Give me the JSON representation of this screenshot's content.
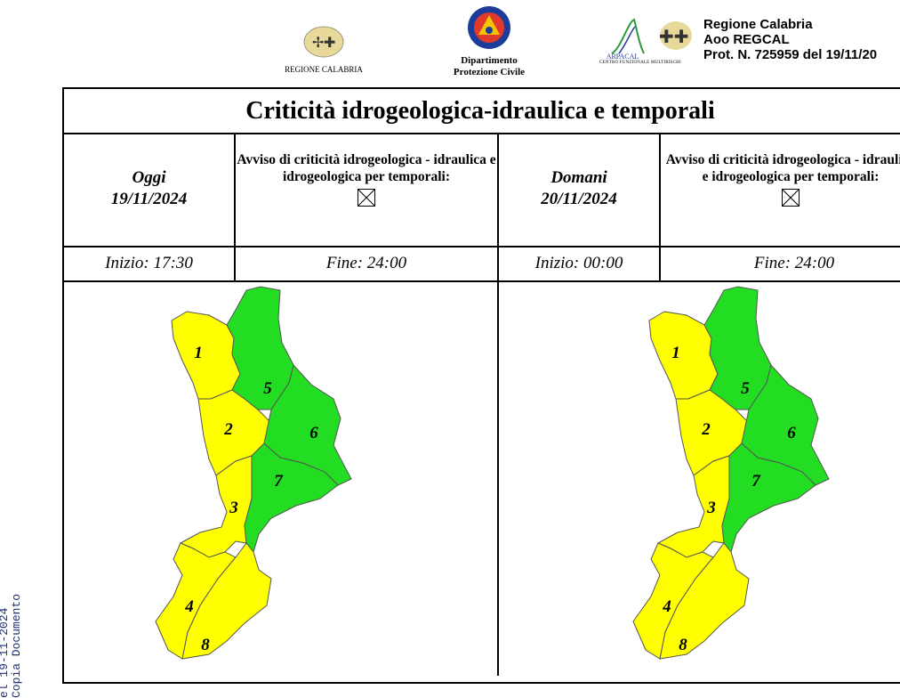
{
  "side_stamp": {
    "line1": "el 19-11-2024",
    "line2": "Copia Documento"
  },
  "header": {
    "logo_regione_caption": "REGIONE CALABRIA",
    "logo_dpc_caption_1": "Dipartimento",
    "logo_dpc_caption_2": "Protezione Civile",
    "logo_arpacal_caption_1": "ARPACAL",
    "logo_arpacal_caption_2": "CENTRO FUNZIONALE MULTIRISCHI",
    "protocol_line_1": "Regione Calabria",
    "protocol_line_2": "Aoo REGCAL",
    "protocol_line_3": "Prot. N. 725959 del 19/11/20"
  },
  "bulletin": {
    "title": "Criticità idrogeologica-idraulica e temporali",
    "days": [
      {
        "label": "Oggi",
        "date": "19/11/2024",
        "avviso_text": "Avviso di criticità idrogeologica - idraulica e idrogeologica per temporali:",
        "avviso_checked": true,
        "inizio": "Inizio: 17:30",
        "fine": "Fine: 24:00"
      },
      {
        "label": "Domani",
        "date": "20/11/2024",
        "avviso_text": "Avviso di criticità idrogeologica - idraulica e idrogeologica per temporali:",
        "avviso_checked": true,
        "inizio": "Inizio: 00:00",
        "fine": "Fine: 24:00"
      }
    ]
  },
  "map_zones": {
    "colors": {
      "yellow": "#ffff00",
      "green": "#22dd22",
      "border": "#555555"
    },
    "today": [
      {
        "zone": "1",
        "level": "yellow"
      },
      {
        "zone": "2",
        "level": "yellow"
      },
      {
        "zone": "3",
        "level": "yellow"
      },
      {
        "zone": "4",
        "level": "yellow"
      },
      {
        "zone": "5",
        "level": "green"
      },
      {
        "zone": "6",
        "level": "green"
      },
      {
        "zone": "7",
        "level": "green"
      },
      {
        "zone": "8",
        "level": "yellow"
      }
    ],
    "tomorrow": [
      {
        "zone": "1",
        "level": "yellow"
      },
      {
        "zone": "2",
        "level": "yellow"
      },
      {
        "zone": "3",
        "level": "yellow"
      },
      {
        "zone": "4",
        "level": "yellow"
      },
      {
        "zone": "5",
        "level": "green"
      },
      {
        "zone": "6",
        "level": "green"
      },
      {
        "zone": "7",
        "level": "green"
      },
      {
        "zone": "8",
        "level": "yellow"
      }
    ]
  }
}
